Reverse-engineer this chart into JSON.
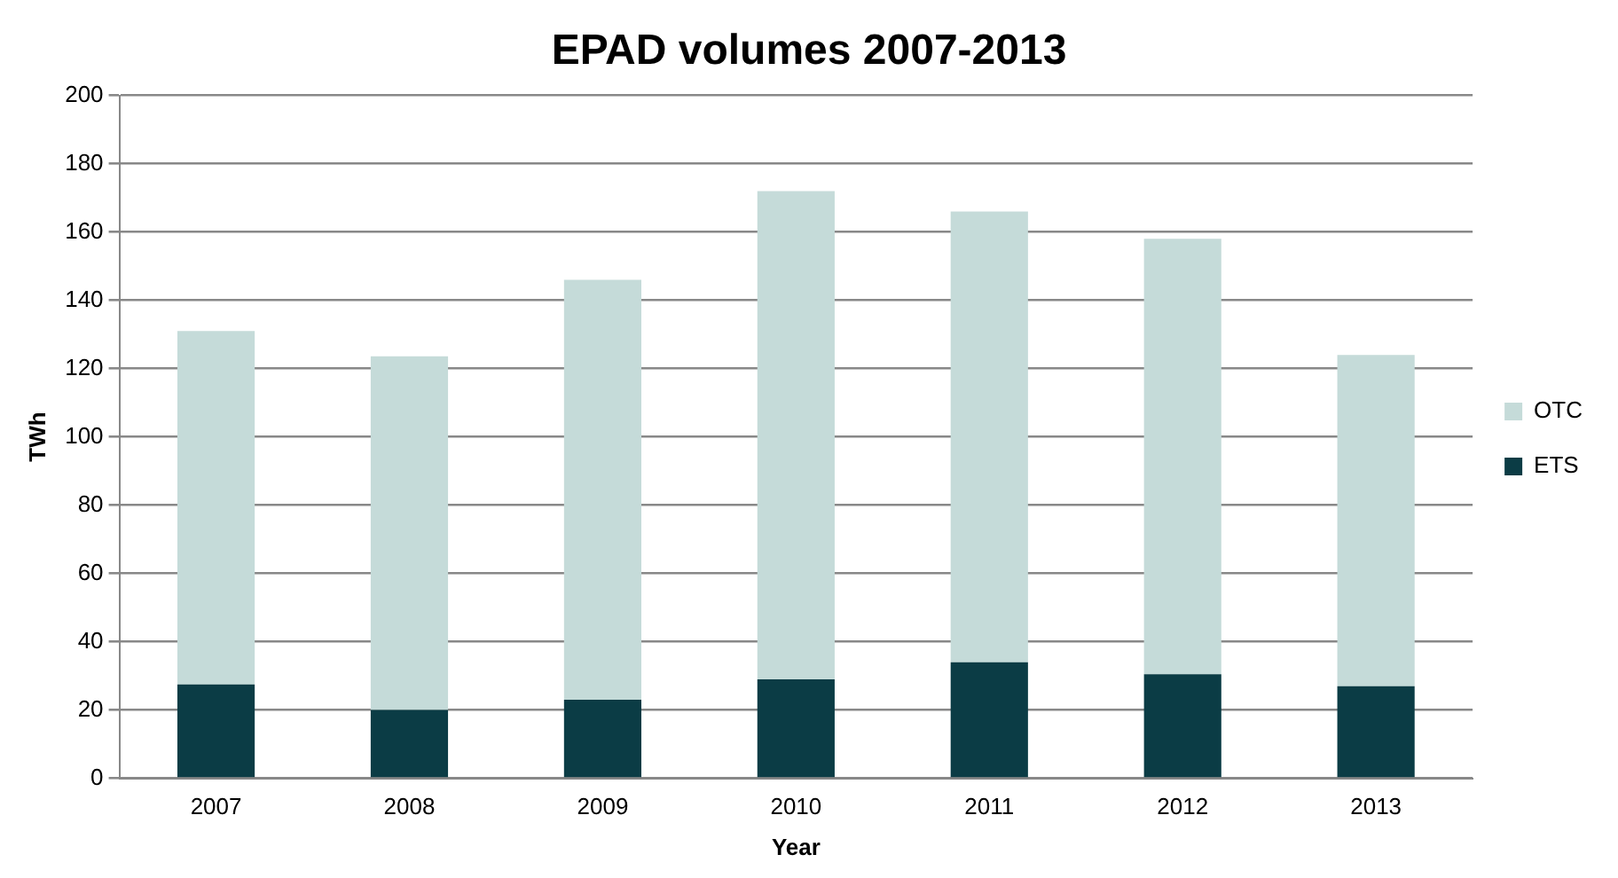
{
  "chart_data": {
    "type": "bar",
    "title": "EPAD volumes 2007-2013",
    "xlabel": "Year",
    "ylabel": "TWh",
    "categories": [
      "2007",
      "2008",
      "2009",
      "2010",
      "2011",
      "2012",
      "2013"
    ],
    "stacked": true,
    "series": [
      {
        "name": "ETS",
        "color": "#0b3c45",
        "values": [
          27.5,
          20,
          23,
          29,
          34,
          30.5,
          27
        ]
      },
      {
        "name": "OTC",
        "color": "#c5dbd9",
        "values": [
          103.5,
          103.6,
          123,
          143,
          132,
          127.5,
          97
        ]
      }
    ],
    "ylim": [
      0,
      200
    ],
    "yticks": [
      0,
      20,
      40,
      60,
      80,
      100,
      120,
      140,
      160,
      180,
      200
    ],
    "grid": "y",
    "legend": "right"
  }
}
